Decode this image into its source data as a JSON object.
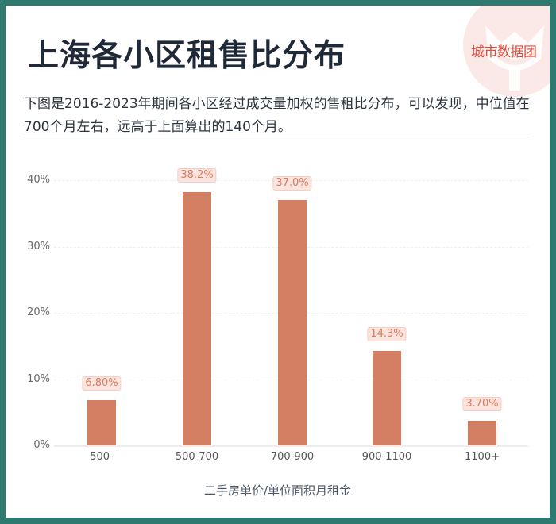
{
  "header": {
    "title": "上海各小区租售比分布",
    "subtitle": "下图是2016-2023年期间各小区经过成交量加权的售租比分布，可以发现，中位值在700个月左右，远高于上面算出的140个月。",
    "brand": "城市数据团"
  },
  "colors": {
    "frame": "#2f7a70",
    "bar": "#d47e63",
    "label_bg": "#fbe4dd",
    "label_text": "#d97b63",
    "brand_text": "#e2493a"
  },
  "chart_data": {
    "type": "bar",
    "title": "上海各小区租售比分布",
    "xlabel": "二手房单价/单位面积月租金",
    "ylabel": "",
    "categories": [
      "500-",
      "500-700",
      "700-900",
      "900-1100",
      "1100+"
    ],
    "values": [
      6.8,
      38.2,
      37.0,
      14.3,
      3.7
    ],
    "value_labels": [
      "6.80%",
      "38.2%",
      "37.0%",
      "14.3%",
      "3.70%"
    ],
    "yticks": [
      "0%",
      "10%",
      "20%",
      "30%",
      "40%"
    ],
    "ylim": [
      0,
      40
    ],
    "grid": true,
    "legend": false
  }
}
